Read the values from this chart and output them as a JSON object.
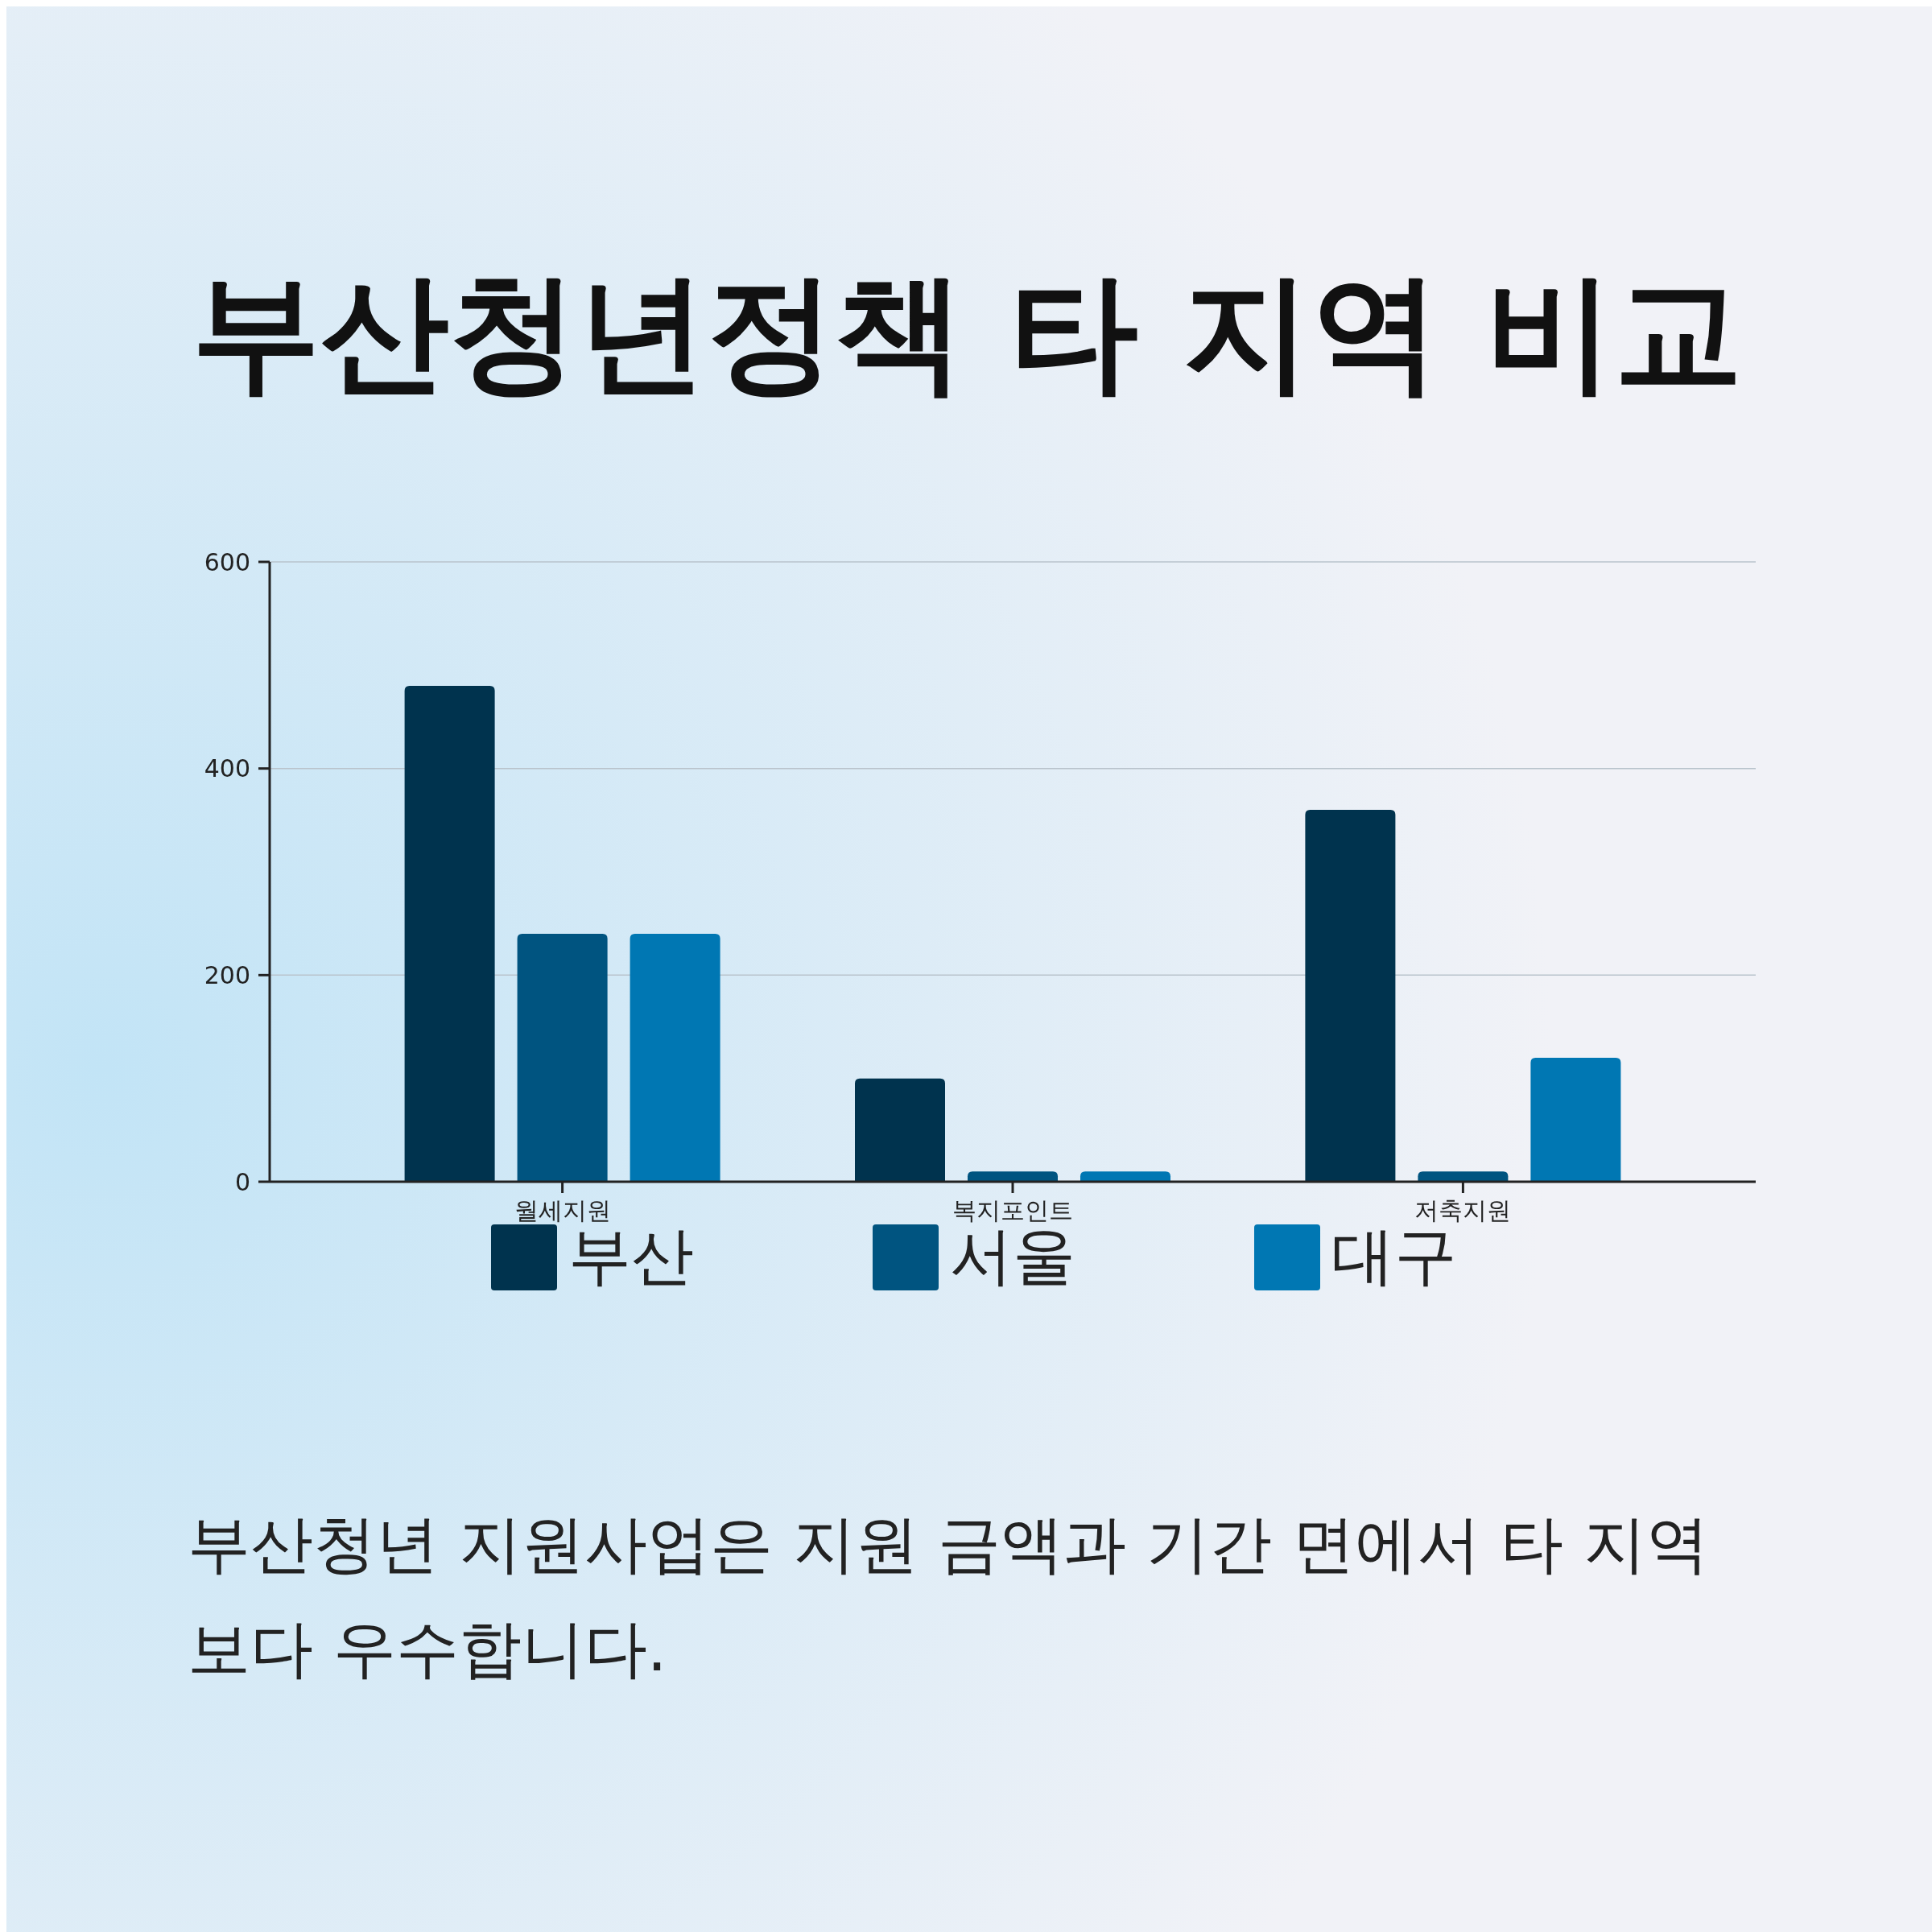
{
  "chart_data": {
    "type": "bar",
    "title": "부산청년정책 타 지역 비교",
    "categories": [
      "월세지원",
      "복지포인트",
      "저축지원"
    ],
    "series": [
      {
        "name": "부산",
        "color": "#00334e",
        "values": [
          480,
          100,
          360
        ]
      },
      {
        "name": "서울",
        "color": "#005480",
        "values": [
          240,
          10,
          10
        ]
      },
      {
        "name": "대구",
        "color": "#0077b3",
        "values": [
          240,
          10,
          120
        ]
      }
    ],
    "ylim": [
      0,
      600
    ],
    "yticks": [
      0,
      200,
      400,
      600
    ],
    "grid": "y",
    "legend": "bottom",
    "annotations": [
      "부산청년 지원사업은 지원 금액과 기간 면에서 타 지역보다 우수합니다."
    ]
  }
}
